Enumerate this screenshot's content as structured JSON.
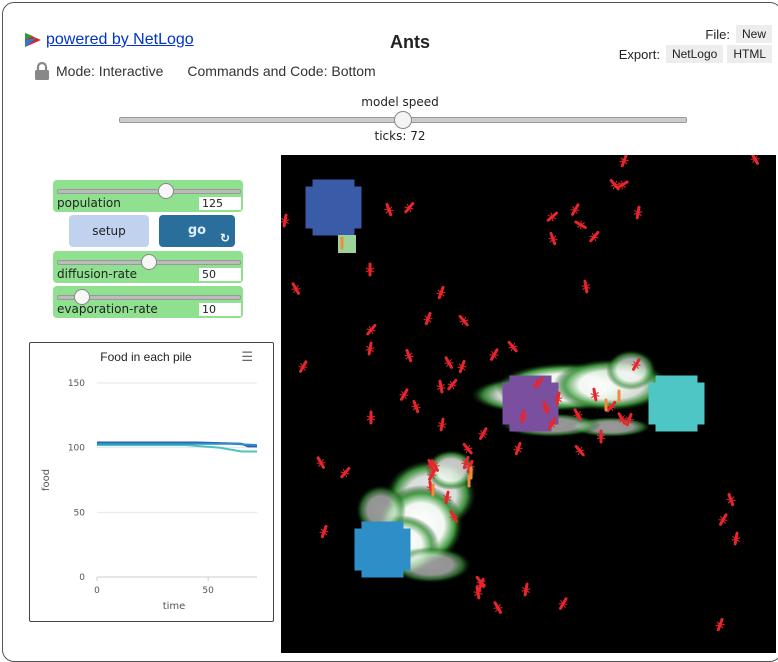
{
  "header": {
    "brand_link": "powered by NetLogo",
    "title": "Ants",
    "file_label": "File:",
    "file_new": "New",
    "export_label": "Export:",
    "export_netlogo": "NetLogo",
    "export_html": "HTML",
    "mode": "Mode: Interactive",
    "commands": "Commands and Code: Bottom"
  },
  "speed": {
    "label": "model speed",
    "ticks": "ticks: 72",
    "value": 0.5
  },
  "widgets": {
    "population": {
      "label": "population",
      "value": "125",
      "fraction": 0.6
    },
    "setup_label": "setup",
    "go_label": "go",
    "diffusion": {
      "label": "diffusion-rate",
      "value": "50",
      "fraction": 0.5
    },
    "evaporation": {
      "label": "evaporation-rate",
      "value": "10",
      "fraction": 0.1
    }
  },
  "chart_data": {
    "type": "line",
    "title": "Food in each pile",
    "xlabel": "time",
    "ylabel": "food",
    "xlim": [
      0,
      72
    ],
    "ylim": [
      0,
      150
    ],
    "x_ticks": [
      0,
      50
    ],
    "y_ticks": [
      0,
      50,
      100,
      150
    ],
    "grid": true,
    "series": [
      {
        "color": "#4cc2c2",
        "x": [
          0,
          40,
          55,
          65,
          72
        ],
        "y": [
          102,
          102,
          100,
          97,
          97
        ]
      },
      {
        "color": "#2e5aa8",
        "x": [
          0,
          45,
          65,
          68,
          72
        ],
        "y": [
          104,
          104,
          103,
          101,
          101
        ]
      },
      {
        "color": "#2a8fc8",
        "x": [
          0,
          60,
          72
        ],
        "y": [
          103,
          103,
          102
        ]
      }
    ]
  },
  "view": {
    "background": "#000000",
    "nest_color": "#7a4fa0",
    "food_colors": [
      "#3a5ba8",
      "#2e8fc8",
      "#4fc6c6"
    ],
    "ant_color": "#e8252c",
    "ant_carrying_color": "#f08a3c"
  }
}
